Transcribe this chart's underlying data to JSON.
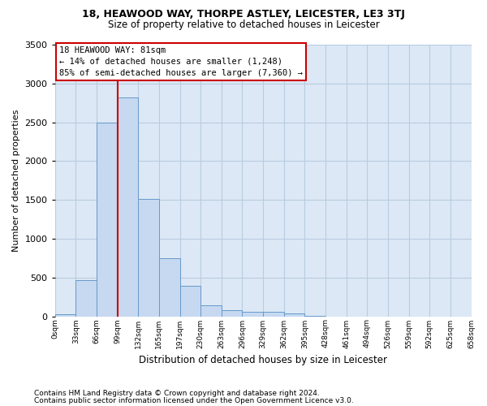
{
  "title1": "18, HEAWOOD WAY, THORPE ASTLEY, LEICESTER, LE3 3TJ",
  "title2": "Size of property relative to detached houses in Leicester",
  "xlabel": "Distribution of detached houses by size in Leicester",
  "ylabel": "Number of detached properties",
  "footer1": "Contains HM Land Registry data © Crown copyright and database right 2024.",
  "footer2": "Contains public sector information licensed under the Open Government Licence v3.0.",
  "annotation_line1": "18 HEAWOOD WAY: 81sqm",
  "annotation_line2": "← 14% of detached houses are smaller (1,248)",
  "annotation_line3": "85% of semi-detached houses are larger (7,360) →",
  "bar_values": [
    30,
    470,
    2500,
    2820,
    1510,
    750,
    390,
    140,
    80,
    60,
    55,
    40,
    10,
    0,
    0,
    0,
    0,
    0,
    0,
    0
  ],
  "bin_labels": [
    "0sqm",
    "33sqm",
    "66sqm",
    "99sqm",
    "132sqm",
    "165sqm",
    "197sqm",
    "230sqm",
    "263sqm",
    "296sqm",
    "329sqm",
    "362sqm",
    "395sqm",
    "428sqm",
    "461sqm",
    "494sqm",
    "526sqm",
    "559sqm",
    "592sqm",
    "625sqm",
    "658sqm"
  ],
  "bar_color": "#c6d9f0",
  "bar_edge_color": "#6699cc",
  "red_line_color": "#cc0000",
  "ax_face_color": "#dce8f5",
  "background_color": "#ffffff",
  "grid_color": "#b8cce0",
  "ylim": [
    0,
    3500
  ],
  "yticks": [
    0,
    500,
    1000,
    1500,
    2000,
    2500,
    3000,
    3500
  ],
  "red_line_x": 3.0
}
